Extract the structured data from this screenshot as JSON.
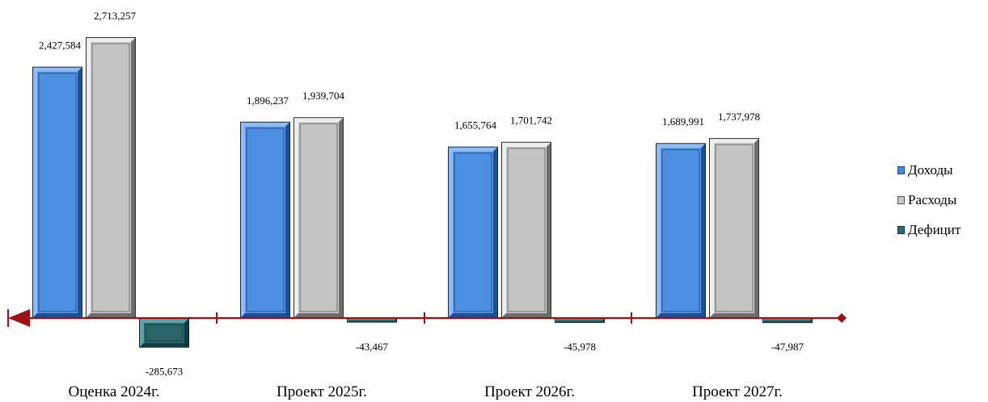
{
  "chart_data": {
    "type": "bar",
    "categories": [
      "Оценка 2024г.",
      "Проект 2025г.",
      "Проект 2026г.",
      "Проект 2027г."
    ],
    "series": [
      {
        "name": "Доходы",
        "values": [
          2427584,
          1896237,
          1655764,
          1689991
        ],
        "labels": [
          "2,427,584",
          "1,896,237",
          "1,655,764",
          "1,689,991"
        ],
        "color": "#5b9be6"
      },
      {
        "name": "Расходы",
        "values": [
          2713257,
          1939704,
          1701742,
          1737978
        ],
        "labels": [
          "2,713,257",
          "1,939,704",
          "1,701,742",
          "1,737,978"
        ],
        "color": "#c8c8c8"
      },
      {
        "name": "Дефицит",
        "values": [
          -285673,
          -43467,
          -45978,
          -47987
        ],
        "labels": [
          "-285,673",
          "-43,467",
          "-45,978",
          "-47,987"
        ],
        "color": "#2e6b70"
      }
    ],
    "axis_color": "#9e1111",
    "legend_position": "right",
    "grid": false
  }
}
